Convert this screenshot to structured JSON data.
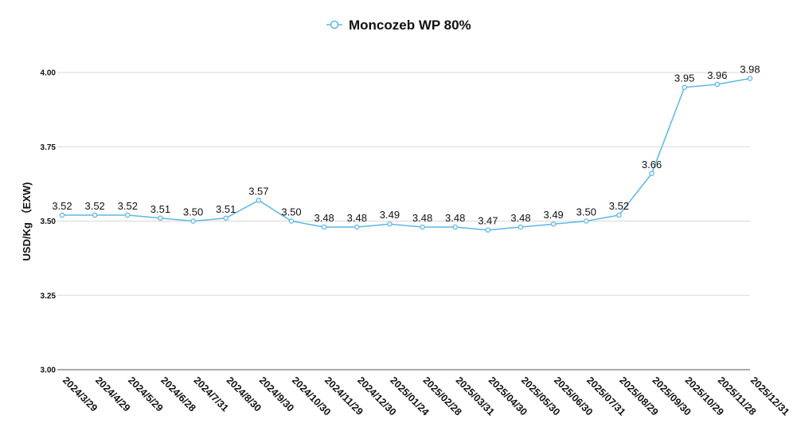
{
  "chart_data": {
    "type": "line",
    "title": "",
    "xlabel": "",
    "ylabel": "USD/Kg （EXW)",
    "ylim": [
      3.0,
      4.0
    ],
    "yticks": [
      "3.00",
      "3.25",
      "3.50",
      "3.75",
      "4.00"
    ],
    "grid": true,
    "legend_position": "top-center",
    "categories": [
      "2024/3/29",
      "2024/4/29",
      "2024/5/29",
      "2024/6/28",
      "2024/7/31",
      "2024/8/30",
      "2024/9/30",
      "2024/10/30",
      "2024/11/29",
      "2024/12/30",
      "2025/01/24",
      "2025/02/28",
      "2025/03/31",
      "2025/04/30",
      "2025/05/30",
      "2025/06/30",
      "2025/07/31",
      "2025/08/29",
      "2025/09/30",
      "2025/10/29",
      "2025/11/28",
      "2025/12/31"
    ],
    "series": [
      {
        "name": "Moncozeb WP 80%",
        "color": "#5db7e8",
        "values": [
          3.52,
          3.52,
          3.52,
          3.51,
          3.5,
          3.51,
          3.57,
          3.5,
          3.48,
          3.48,
          3.49,
          3.48,
          3.48,
          3.47,
          3.48,
          3.49,
          3.5,
          3.52,
          3.66,
          3.95,
          3.96,
          3.98
        ],
        "labels": [
          "3.52",
          "3.52",
          "3.52",
          "3.51",
          "3.50",
          "3.51",
          "3.57",
          "3.50",
          "3.48",
          "3.48",
          "3.49",
          "3.48",
          "3.48",
          "3.47",
          "3.48",
          "3.49",
          "3.50",
          "3.52",
          "3.66",
          "3.95",
          "3.96",
          "3.98"
        ]
      }
    ]
  }
}
